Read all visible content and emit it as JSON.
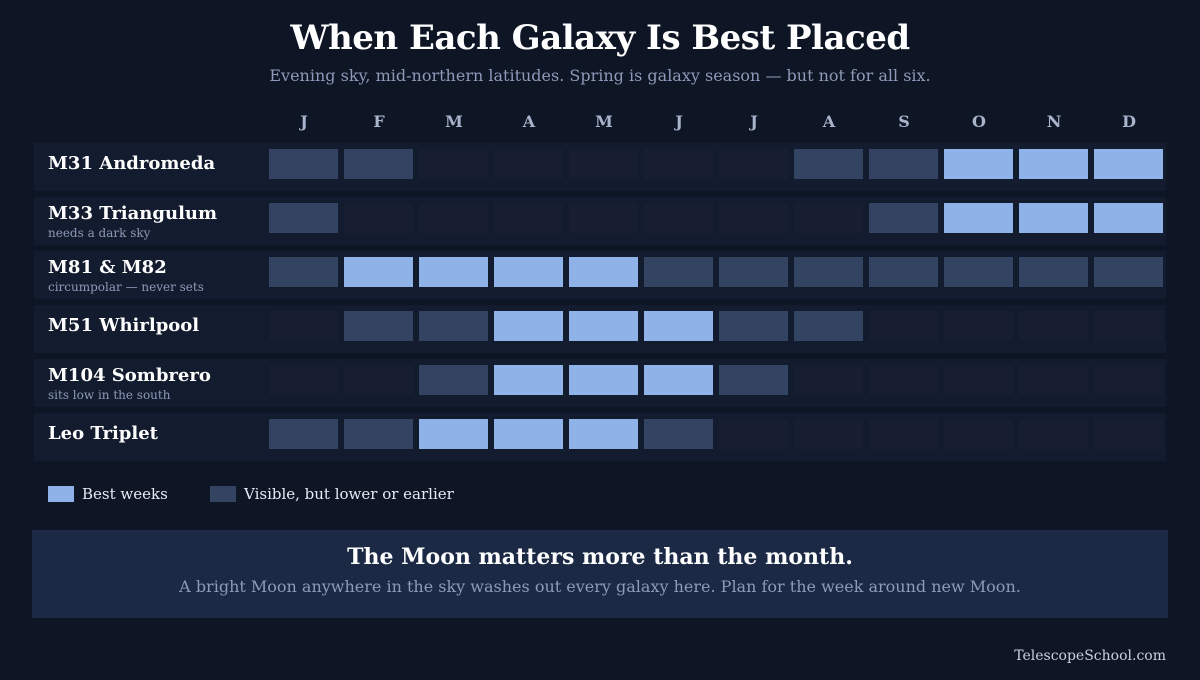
{
  "header": {
    "title": "When Each Galaxy Is Best Placed",
    "subtitle": "Evening sky, mid-northern latitudes. Spring is galaxy season — but not for all six."
  },
  "colors": {
    "best": "#8fb3e8",
    "visible": "#324462",
    "none": "#161e2f",
    "background": "#0e1525",
    "row_background": "#131c2e",
    "callout_background": "#1b2944"
  },
  "chart_data": {
    "type": "heatmap",
    "months": [
      "J",
      "F",
      "M",
      "A",
      "M",
      "J",
      "J",
      "A",
      "S",
      "O",
      "N",
      "D"
    ],
    "level_key": {
      "0": "not shown",
      "1": "Visible, but lower or earlier",
      "2": "Best weeks"
    },
    "rows": [
      {
        "name": "M31 Andromeda",
        "note": "",
        "levels": [
          1,
          1,
          0,
          0,
          0,
          0,
          0,
          1,
          1,
          2,
          2,
          2
        ]
      },
      {
        "name": "M33 Triangulum",
        "note": "needs a dark sky",
        "levels": [
          1,
          0,
          0,
          0,
          0,
          0,
          0,
          0,
          1,
          2,
          2,
          2
        ]
      },
      {
        "name": "M81 & M82",
        "note": "circumpolar — never sets",
        "levels": [
          1,
          2,
          2,
          2,
          2,
          1,
          1,
          1,
          1,
          1,
          1,
          1
        ]
      },
      {
        "name": "M51 Whirlpool",
        "note": "",
        "levels": [
          0,
          1,
          1,
          2,
          2,
          2,
          1,
          1,
          0,
          0,
          0,
          0
        ]
      },
      {
        "name": "M104 Sombrero",
        "note": "sits low in the south",
        "levels": [
          0,
          0,
          1,
          2,
          2,
          2,
          1,
          0,
          0,
          0,
          0,
          0
        ]
      },
      {
        "name": "Leo Triplet",
        "note": "",
        "levels": [
          1,
          1,
          2,
          2,
          2,
          1,
          0,
          0,
          0,
          0,
          0,
          0
        ]
      }
    ],
    "legend": [
      {
        "label": "Best weeks",
        "level": 2
      },
      {
        "label": "Visible, but lower or earlier",
        "level": 1
      }
    ]
  },
  "callout": {
    "title": "The Moon matters more than the month.",
    "body": "A bright Moon anywhere in the sky washes out every galaxy here. Plan for the week around new Moon."
  },
  "footer": {
    "credit": "TelescopeSchool.com"
  }
}
